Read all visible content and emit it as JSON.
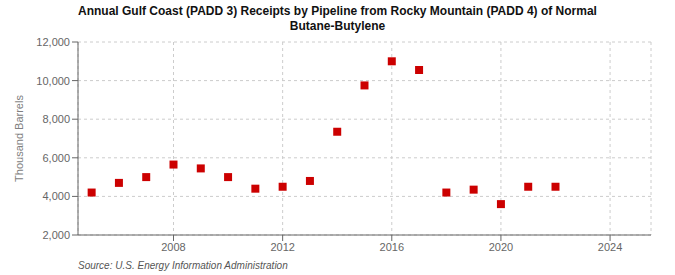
{
  "chart_data": {
    "type": "scatter",
    "title": "Annual Gulf Coast (PADD 3) Receipts by Pipeline from Rocky Mountain (PADD 4) of Normal\nButane-Butylene",
    "ylabel": "Thousand Barrels",
    "source": "Source: U.S. Energy Information Administration",
    "x": [
      2005,
      2006,
      2007,
      2008,
      2009,
      2010,
      2011,
      2012,
      2013,
      2014,
      2015,
      2016,
      2017,
      2018,
      2019,
      2020,
      2021,
      2022
    ],
    "values": [
      4200,
      4700,
      5000,
      5650,
      5450,
      5000,
      4400,
      4500,
      4800,
      7350,
      9750,
      11000,
      10550,
      4200,
      4350,
      3600,
      4500,
      4500
    ],
    "color": "#cc0000",
    "marker": "square",
    "grid": true,
    "xlim": [
      2004.5,
      2025.5
    ],
    "xticks": [
      2008,
      2012,
      2016,
      2020,
      2024
    ],
    "ylim": [
      2000,
      12000
    ],
    "yticks": [
      {
        "value": 2000,
        "label": "2,000"
      },
      {
        "value": 4000,
        "label": "4,000"
      },
      {
        "value": 6000,
        "label": "6,000"
      },
      {
        "value": 8000,
        "label": "8,000"
      },
      {
        "value": 10000,
        "label": "10,000"
      },
      {
        "value": 12000,
        "label": "12,000"
      }
    ]
  }
}
